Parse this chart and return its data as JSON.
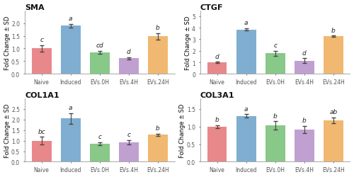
{
  "charts": [
    {
      "title": "SMA",
      "values": [
        1.0,
        1.9,
        0.85,
        0.62,
        1.48
      ],
      "errors": [
        0.13,
        0.07,
        0.05,
        0.04,
        0.13
      ],
      "letters": [
        "c",
        "a",
        "cd",
        "d",
        "b"
      ],
      "ylim": [
        0,
        2.5
      ],
      "yticks": [
        0.0,
        0.5,
        1.0,
        1.5,
        2.0
      ]
    },
    {
      "title": "CTGF",
      "values": [
        1.0,
        3.85,
        1.78,
        1.15,
        3.25
      ],
      "errors": [
        0.06,
        0.1,
        0.22,
        0.2,
        0.07
      ],
      "letters": [
        "d",
        "a",
        "c",
        "d",
        "b"
      ],
      "ylim": [
        0,
        5.5
      ],
      "yticks": [
        0,
        1,
        2,
        3,
        4,
        5
      ]
    },
    {
      "title": "COL1A1",
      "values": [
        1.0,
        2.05,
        0.85,
        0.92,
        1.28
      ],
      "errors": [
        0.18,
        0.25,
        0.08,
        0.1,
        0.05
      ],
      "letters": [
        "bc",
        "a",
        "c",
        "c",
        "b"
      ],
      "ylim": [
        0,
        3.0
      ],
      "yticks": [
        0.0,
        0.5,
        1.0,
        1.5,
        2.0,
        2.5
      ]
    },
    {
      "title": "COL3A1",
      "values": [
        1.0,
        1.3,
        1.03,
        0.92,
        1.18
      ],
      "errors": [
        0.04,
        0.05,
        0.12,
        0.1,
        0.08
      ],
      "letters": [
        "b",
        "a",
        "b",
        "b",
        "ab"
      ],
      "ylim": [
        0,
        1.8
      ],
      "yticks": [
        0.0,
        0.5,
        1.0,
        1.5
      ]
    }
  ],
  "bar_colors": [
    "#e8888a",
    "#80aed0",
    "#88c888",
    "#c0a0d0",
    "#f0b870"
  ],
  "categories": [
    "Naive",
    "Induced",
    "EVs.0H",
    "EVs.4H",
    "EVs.24H"
  ],
  "ylabel": "Fold Change ± SD",
  "error_color": "#444444",
  "background_color": "#ffffff",
  "letter_fontsize": 6.5,
  "title_fontsize": 8,
  "axis_fontsize": 5.5,
  "ylabel_fontsize": 6
}
